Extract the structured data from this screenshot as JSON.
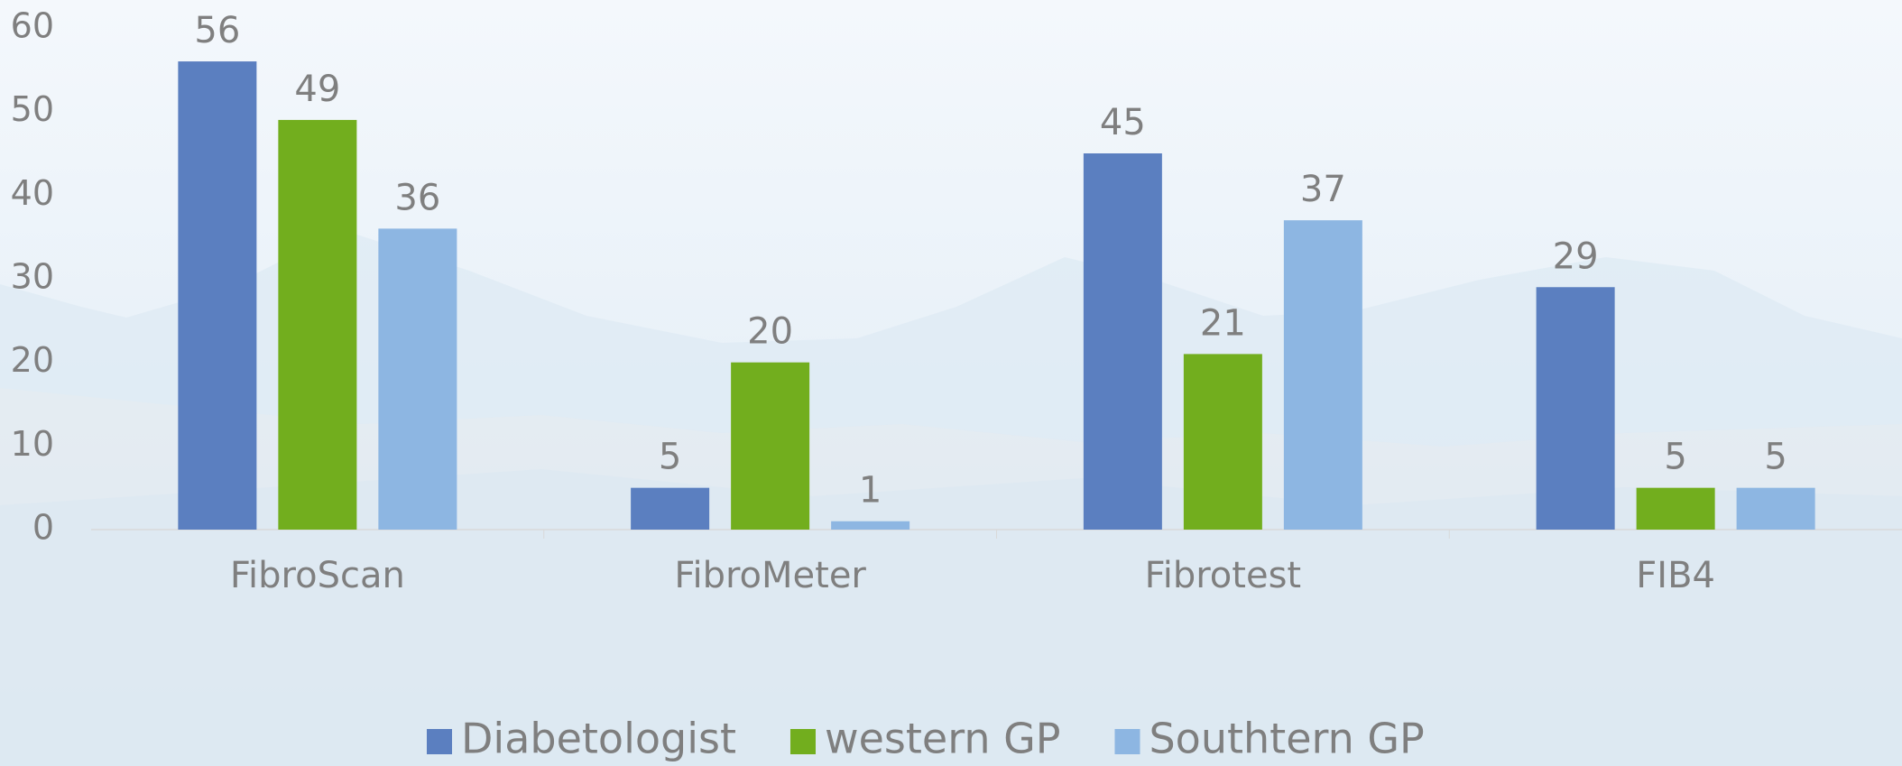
{
  "chart_data": {
    "type": "bar",
    "categories": [
      "FibroScan",
      "FibroMeter",
      "Fibrotest",
      "FIB4"
    ],
    "series": [
      {
        "name": "Diabetologist",
        "color": "#5b7fc0",
        "values": [
          56,
          5,
          45,
          29
        ]
      },
      {
        "name": "western GP",
        "color": "#72ae1e",
        "values": [
          49,
          20,
          21,
          5
        ]
      },
      {
        "name": "Southtern GP",
        "color": "#8db6e2",
        "values": [
          36,
          1,
          37,
          5
        ]
      }
    ],
    "ylim": [
      0,
      60
    ],
    "yticks": [
      0,
      10,
      20,
      30,
      40,
      50,
      60
    ],
    "grid": false,
    "legend": "bottom"
  }
}
